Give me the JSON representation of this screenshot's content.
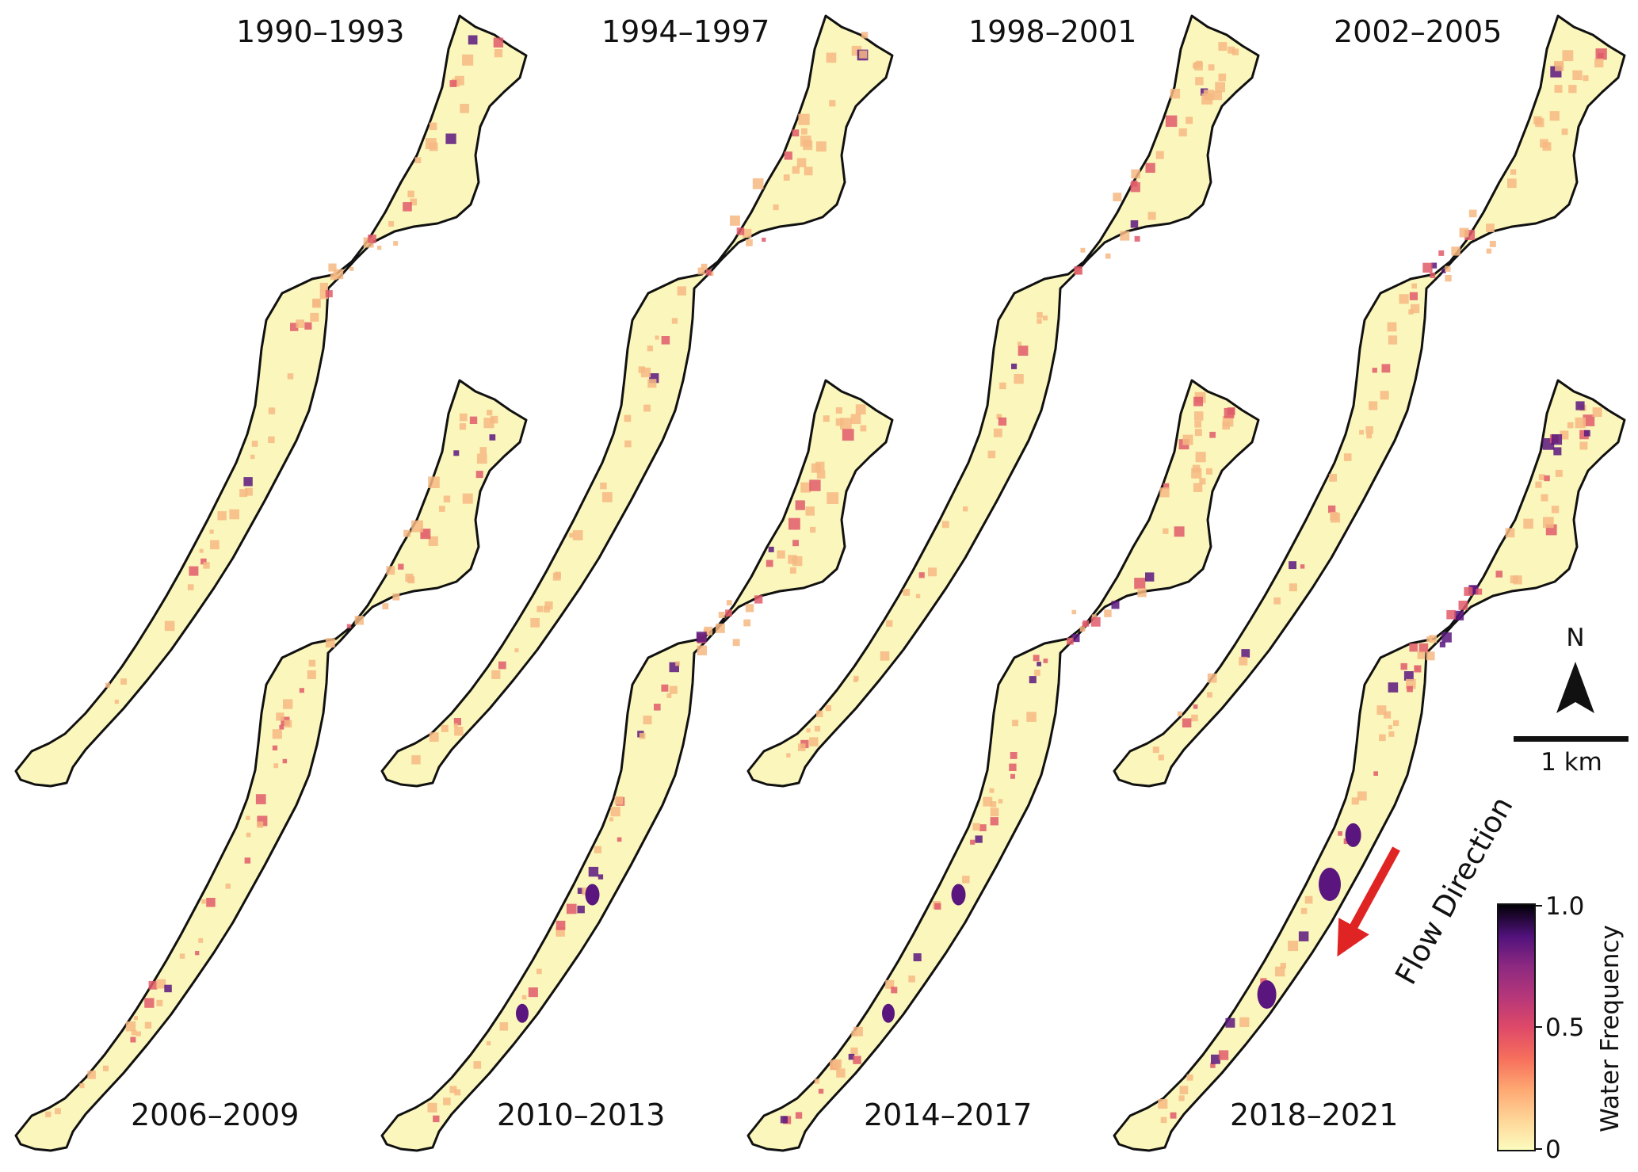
{
  "panels": {
    "top_labels": [
      "1990–1993",
      "1994–1997",
      "1998–2001",
      "2002–2005"
    ],
    "bottom_labels": [
      "2006–2009",
      "2010–2013",
      "2014–2017",
      "2018–2021"
    ]
  },
  "north_arrow": {
    "label": "N"
  },
  "scale_bar": {
    "label": "1 km"
  },
  "flow": {
    "label": "Flow Direction",
    "arrow_color": "#e02424"
  },
  "colorbar": {
    "label": "Water Frequency",
    "ticks": [
      "1.0",
      "0.5",
      "0"
    ],
    "cmap": "magma_r",
    "colors": [
      "#fcfdbf",
      "#fec287",
      "#fb8861",
      "#e3466b",
      "#b73779",
      "#8c2981",
      "#51127c",
      "#1d1147",
      "#000004"
    ]
  },
  "style": {
    "valley_fill": "#fbf7bc",
    "outline": "#111111",
    "water_low": "#f6b983",
    "water_mid": "#e05a6a",
    "water_high": "#5a167e"
  }
}
